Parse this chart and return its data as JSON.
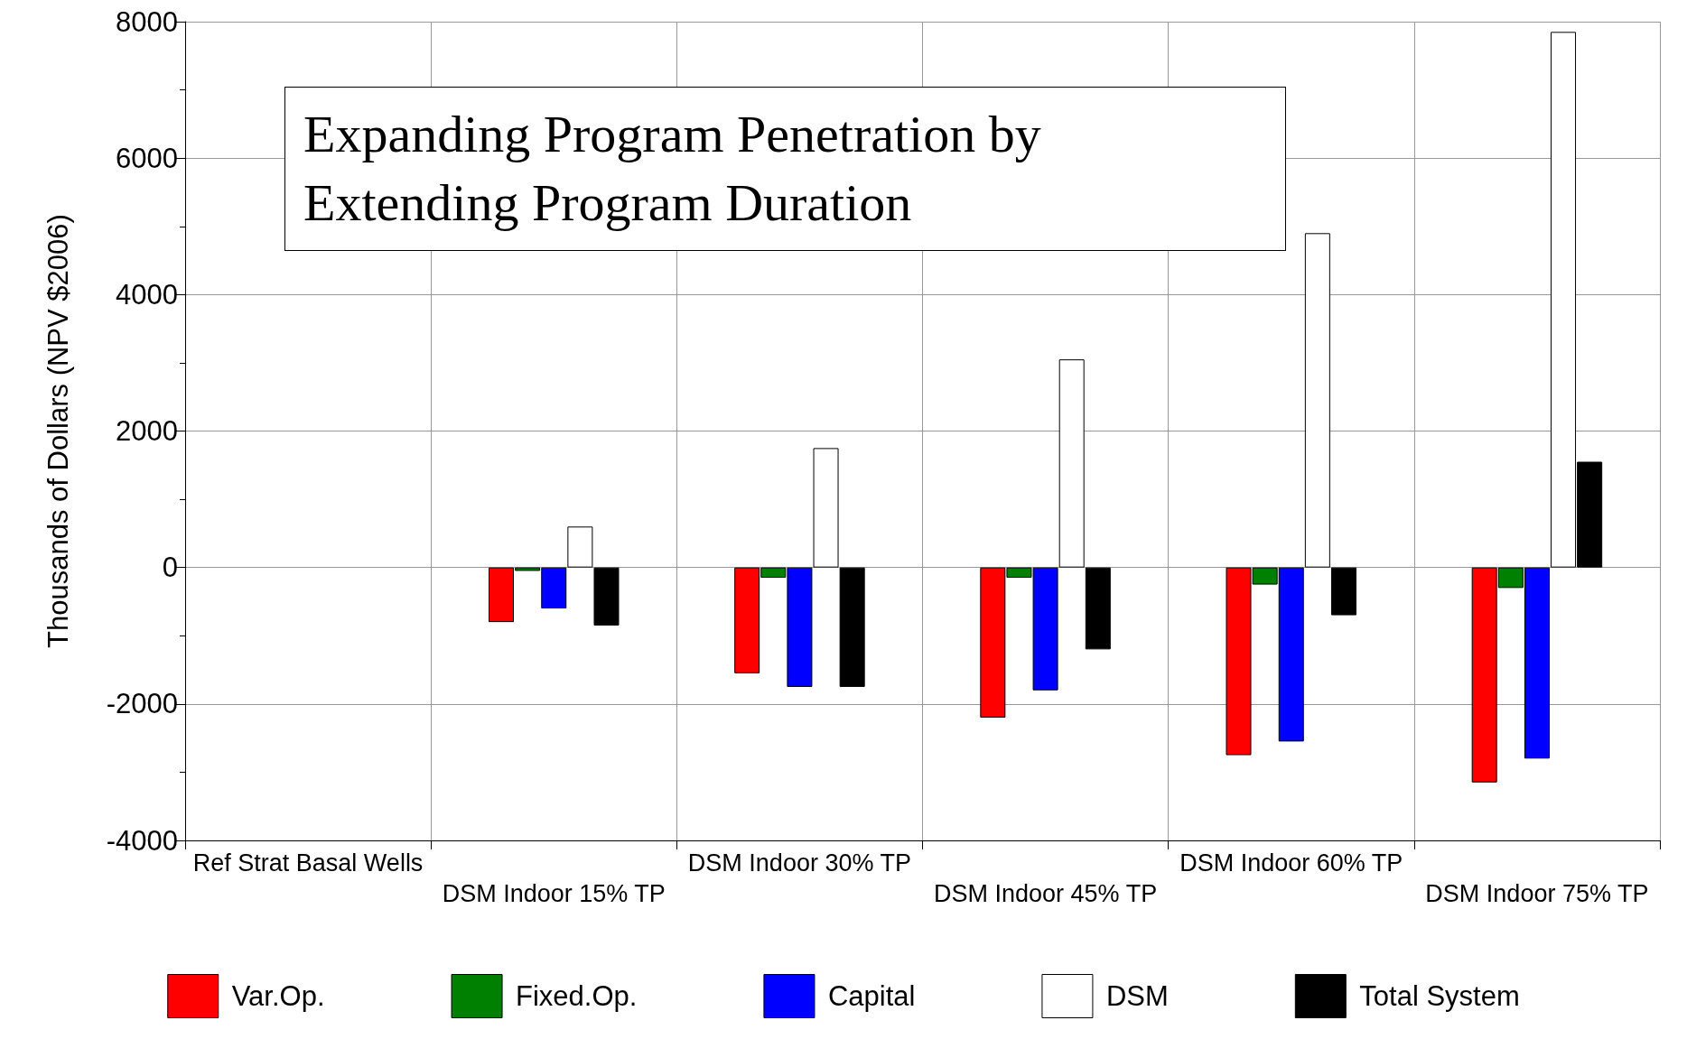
{
  "chart_data": {
    "type": "bar",
    "title": "Expanding Program Penetration by\nExtending Program Duration",
    "ylabel": "Thousands of Dollars (NPV $2006)",
    "categories": [
      "Ref Strat Basal Wells",
      "DSM Indoor 15% TP",
      "DSM Indoor 30% TP",
      "DSM Indoor 45% TP",
      "DSM Indoor 60% TP",
      "DSM Indoor 75% TP"
    ],
    "series": [
      {
        "name": "Var.Op.",
        "color": "#ff0000",
        "values": [
          null,
          -800,
          -1550,
          -2200,
          -2750,
          -3150
        ]
      },
      {
        "name": "Fixed.Op.",
        "color": "#008000",
        "values": [
          null,
          -50,
          -150,
          -150,
          -250,
          -300
        ]
      },
      {
        "name": "Capital",
        "color": "#0000ff",
        "values": [
          null,
          -600,
          -1750,
          -1800,
          -2550,
          -2800
        ]
      },
      {
        "name": "DSM",
        "color": "#ffffff",
        "values": [
          null,
          600,
          1750,
          3050,
          4900,
          7850
        ]
      },
      {
        "name": "Total System",
        "color": "#000000",
        "values": [
          null,
          -850,
          -1750,
          -1200,
          -700,
          1550
        ]
      }
    ],
    "ylim": [
      -4000,
      8000
    ],
    "yticks": [
      -4000,
      -2000,
      0,
      2000,
      4000,
      6000,
      8000
    ],
    "grid": true,
    "legend": "bottom"
  }
}
